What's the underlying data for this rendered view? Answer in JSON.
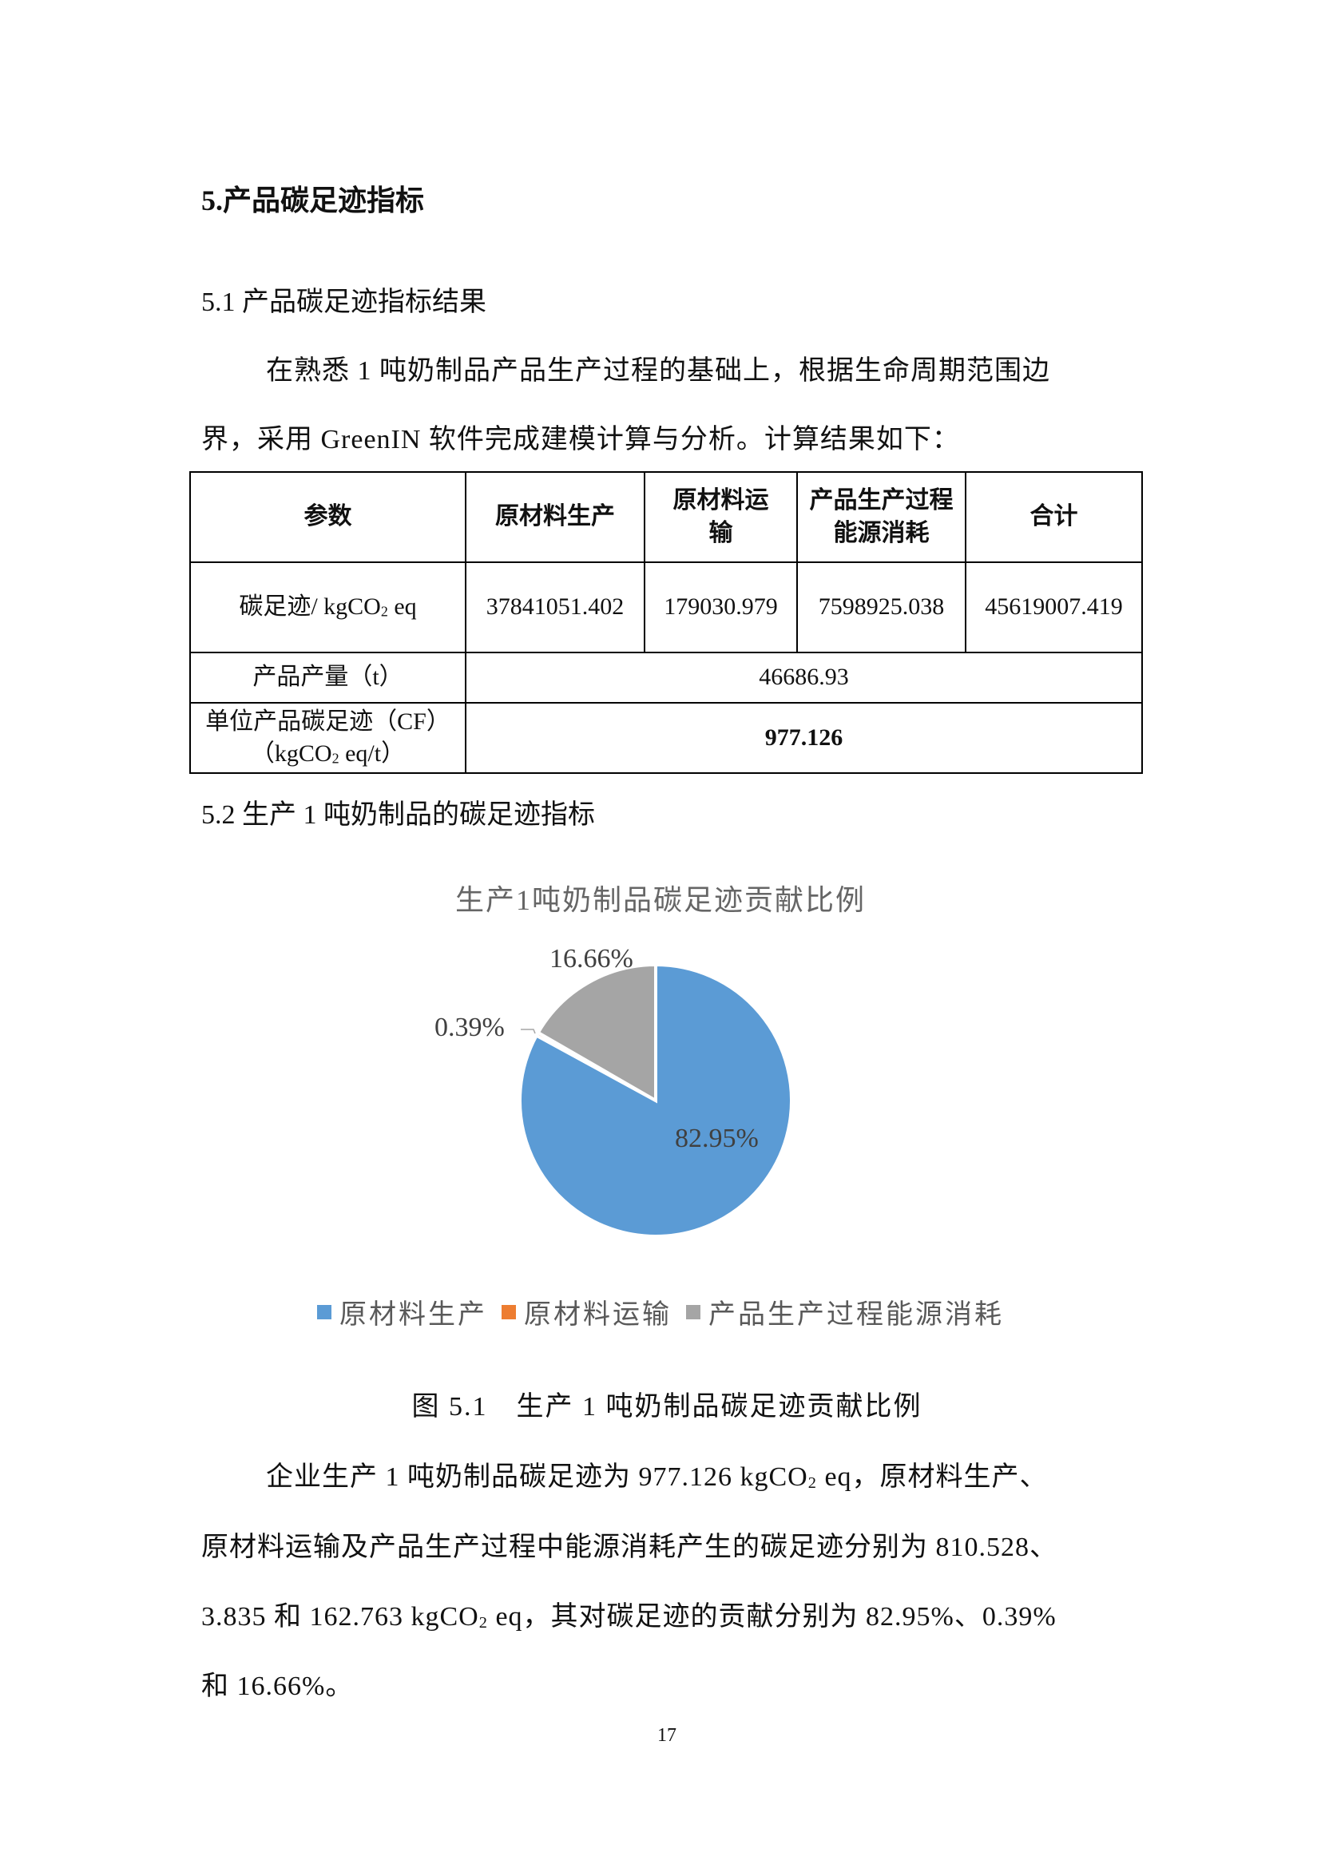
{
  "heading": "5.产品碳足迹指标",
  "section_5_1": "5.1 产品碳足迹指标结果",
  "intro": {
    "line1": "在熟悉 1 吨奶制品产品生产过程的基础上，根据生命周期范围边",
    "line2": "界，采用 GreenIN 软件完成建模计算与分析。计算结果如下："
  },
  "table": {
    "headers": [
      "参数",
      "原材料生产",
      "原材料运输",
      "产品生产过程能源消耗",
      "合计"
    ],
    "row_cf": {
      "label_a": "碳足迹/ kgCO",
      "label_sub": "2",
      "label_b": " eq",
      "values": [
        "37841051.402",
        "179030.979",
        "7598925.038",
        "45619007.419"
      ]
    },
    "row_output": {
      "label": "产品产量（t）",
      "value": "46686.93"
    },
    "row_unit": {
      "label1": "单位产品碳足迹（CF）",
      "label2_a": "（kgCO",
      "label2_sub": "2",
      "label2_b": " eq/t）",
      "value": "977.126"
    }
  },
  "section_5_2": "5.2 生产 1 吨奶制品的碳足迹指标",
  "chart_data": {
    "type": "pie",
    "title": "生产1吨奶制品碳足迹贡献比例",
    "categories": [
      "原材料生产",
      "原材料运输",
      "产品生产过程能源消耗"
    ],
    "values": [
      82.95,
      0.39,
      16.66
    ],
    "labels": [
      "82.95%",
      "0.39%",
      "16.66%"
    ],
    "colors": [
      "#5B9BD5",
      "#ED7D31",
      "#A5A5A5"
    ],
    "legend": "bottom"
  },
  "caption": "图 5.1　生产 1 吨奶制品碳足迹贡献比例",
  "conclusion": {
    "l1a": "企业生产 1 吨奶制品碳足迹为 977.126 kgCO",
    "l1sub": "2",
    "l1b": " eq，原材料生产、",
    "l2": "原材料运输及产品生产过程中能源消耗产生的碳足迹分别为 810.528、",
    "l3a": "3.835 和 162.763 kgCO",
    "l3sub": "2",
    "l3b": " eq，其对碳足迹的贡献分别为 82.95%、0.39%",
    "l4": "和 16.66%。"
  },
  "page_number": "17"
}
